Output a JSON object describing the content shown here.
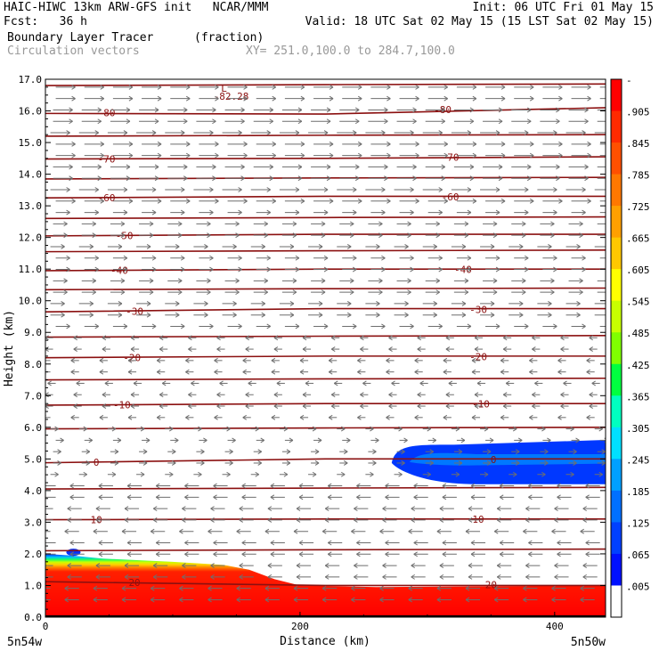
{
  "header": {
    "line1_left": "HAIC-HIWC 13km ARW-GFS init   NCAR/MMM",
    "line1_right": "Init: 06 UTC Fri 01 May 15",
    "line2_left": "Fcst:   36 h",
    "line2_right": "Valid: 18 UTC Sat 02 May 15 (15 LST Sat 02 May 15)",
    "line3_field": "Boundary Layer Tracer",
    "line3_units": "(fraction)",
    "line4_field": "Circulation vectors",
    "line4_xy": "XY= 251.0,100.0 to 284.7,100.0"
  },
  "colors": {
    "contour": "#8b1010",
    "vector": "#6e6e6e",
    "background": "#ffffff"
  },
  "chart_data": {
    "type": "heatmap",
    "title": "Boundary Layer Tracer",
    "units": "(fraction)",
    "xlabel": "Distance (km)",
    "ylabel": "Height (km)",
    "xlim": [
      0,
      440
    ],
    "ylim": [
      0,
      17
    ],
    "x_ticks": [
      0,
      200,
      400
    ],
    "x_tick_labels": [
      "0",
      "200",
      "400"
    ],
    "y_ticks": [
      0,
      1,
      2,
      3,
      4,
      5,
      6,
      7,
      8,
      9,
      10,
      11,
      12,
      13,
      14,
      15,
      16,
      17
    ],
    "y_tick_labels": [
      "0.0",
      "1.0",
      "2.0",
      "3.0",
      "4.0",
      "5.0",
      "6.0",
      "7.0",
      "8.0",
      "9.0",
      "10.0",
      "11.0",
      "12.0",
      "13.0",
      "14.0",
      "15.0",
      "16.0",
      "17.0"
    ],
    "endpoint_left": "5n54w",
    "endpoint_right": "5n50w",
    "colorbar": {
      "labels": [
        "-",
        ".905",
        ".845",
        ".785",
        ".725",
        ".665",
        ".605",
        ".545",
        ".485",
        ".425",
        ".365",
        ".305",
        ".245",
        ".185",
        ".125",
        ".065",
        ".005"
      ],
      "colors": [
        "#ff0000",
        "#ff2a00",
        "#ff5000",
        "#ff7800",
        "#ffa000",
        "#ffc800",
        "#ffff00",
        "#c8ff00",
        "#80ff00",
        "#00ff40",
        "#00ffc0",
        "#00e0ff",
        "#00a0ff",
        "#0070ff",
        "#0040ff",
        "#0010ff",
        "#ffffff"
      ]
    },
    "isotherm_annotation": "L -82.28",
    "isotherms": [
      {
        "label": "-80",
        "label_x": [
          48,
          312
        ],
        "y": [
          15.92,
          15.9,
          16.1
        ]
      },
      {
        "label": "-70",
        "label_x": [
          48,
          318
        ],
        "y": [
          14.48,
          14.5,
          14.55
        ]
      },
      {
        "label": "-60",
        "label_x": [
          48,
          318
        ],
        "y": [
          13.25,
          13.3,
          13.3
        ]
      },
      {
        "label": "-50",
        "label_x": [
          62
        ],
        "y": [
          12.05,
          12.1,
          12.1
        ]
      },
      {
        "label": "-40",
        "label_x": [
          58,
          328
        ],
        "y": [
          10.95,
          11.0,
          11.0
        ]
      },
      {
        "label": "-30",
        "label_x": [
          70,
          340
        ],
        "y": [
          9.65,
          9.75,
          9.75
        ]
      },
      {
        "label": "-20",
        "label_x": [
          68,
          340
        ],
        "y": [
          8.2,
          8.25,
          8.25
        ]
      },
      {
        "label": "-10",
        "label_x": [
          60,
          342
        ],
        "y": [
          6.7,
          6.75,
          6.75
        ]
      },
      {
        "label": "0",
        "label_x": [
          40,
          352
        ],
        "y": [
          4.88,
          5.0,
          5.0
        ]
      },
      {
        "label": "10",
        "label_x": [
          40,
          340
        ],
        "y": [
          3.08,
          3.1,
          3.1
        ]
      },
      {
        "label": "20",
        "label_x": [
          70,
          350
        ],
        "y": [
          1.12,
          1.0,
          1.0
        ]
      }
    ],
    "extra_isotherm_y": [
      16.8,
      15.2,
      13.85,
      12.6,
      11.55,
      10.35,
      8.85,
      7.5,
      5.95,
      4.05,
      2.1
    ],
    "tracer": {
      "boundary_layer_top_km": [
        [
          0,
          2.0
        ],
        [
          20,
          1.95
        ],
        [
          45,
          1.85
        ],
        [
          100,
          1.75
        ],
        [
          140,
          1.65
        ],
        [
          160,
          1.5
        ],
        [
          180,
          1.2
        ],
        [
          200,
          1.0
        ],
        [
          260,
          0.95
        ],
        [
          440,
          1.0
        ]
      ],
      "elevated_layer": {
        "x_start": 272,
        "x_end": 440,
        "bottom_km": 4.2,
        "top_km": 5.6,
        "value": 0.065
      }
    },
    "wind_regimes": [
      {
        "z_range": [
          13,
          17
        ],
        "direction": "east",
        "speed": "strong"
      },
      {
        "z_range": [
          9,
          13
        ],
        "direction": "east",
        "speed": "moderate"
      },
      {
        "z_range": [
          6,
          9
        ],
        "direction": "west",
        "speed": "weak"
      },
      {
        "z_range": [
          4.5,
          6
        ],
        "direction": "east",
        "speed": "weak"
      },
      {
        "z_range": [
          0,
          4.5
        ],
        "direction": "west",
        "speed": "moderate"
      }
    ]
  }
}
